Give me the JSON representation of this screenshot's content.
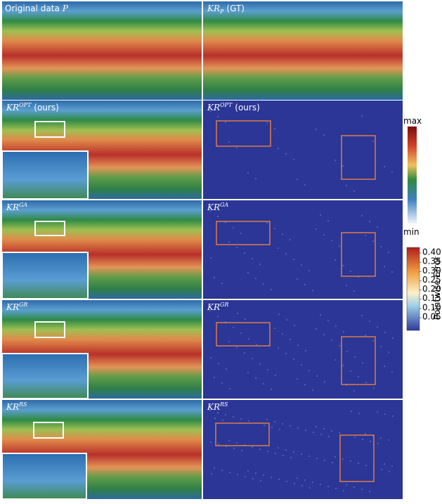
{
  "original": {
    "text": "Original data",
    "var": "P"
  },
  "ground_truth": {
    "base": "KR",
    "sub": "P",
    "note": "(GT)"
  },
  "methods": [
    {
      "base": "KR",
      "sup": "OPT",
      "note": "(ours)"
    },
    {
      "base": "KR",
      "sup": "GA"
    },
    {
      "base": "KR",
      "sup": "GR"
    },
    {
      "base": "KR",
      "sup": "RS"
    }
  ],
  "value_colorbar": {
    "max": "max",
    "min": "min"
  },
  "error_colorbar": {
    "label": "Pointwise Error",
    "ticks": [
      "0.05",
      "0.10",
      "0.15",
      "0.20",
      "0.25",
      "0.30",
      "0.35",
      "0.40"
    ]
  }
}
